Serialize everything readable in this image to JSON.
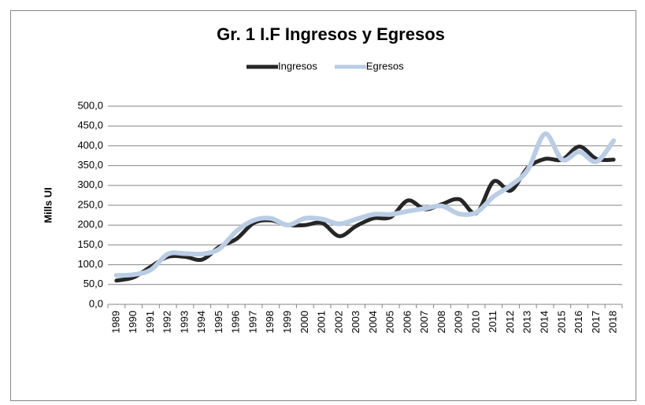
{
  "chart_data": {
    "type": "line",
    "title": "Gr. 1  I.F Ingresos y Egresos",
    "y_label": "Mills UI",
    "categories": [
      "1989",
      "1990",
      "1991",
      "1992",
      "1993",
      "1994",
      "1995",
      "1996",
      "1997",
      "1998",
      "1999",
      "2000",
      "2001",
      "2002",
      "2003",
      "2004",
      "2005",
      "2006",
      "2007",
      "2008",
      "2009",
      "2010",
      "2011",
      "2012",
      "2013",
      "2014",
      "2015",
      "2016",
      "2017",
      "2018"
    ],
    "series": [
      {
        "name": "Ingresos",
        "color": "#262626",
        "values": [
          60,
          68,
          95,
          120,
          120,
          113,
          145,
          165,
          205,
          212,
          200,
          200,
          205,
          172,
          198,
          217,
          220,
          262,
          240,
          253,
          265,
          230,
          310,
          287,
          345,
          367,
          365,
          398,
          367,
          365
        ]
      },
      {
        "name": "Egresos",
        "color": "#b9cde5",
        "values": [
          73,
          75,
          87,
          127,
          128,
          127,
          140,
          185,
          212,
          217,
          200,
          217,
          215,
          203,
          215,
          227,
          227,
          235,
          242,
          248,
          228,
          232,
          272,
          300,
          340,
          430,
          365,
          385,
          360,
          413
        ]
      }
    ],
    "ylim": [
      0,
      500
    ],
    "yticks": [
      {
        "value": 0,
        "label": "0,0"
      },
      {
        "value": 50,
        "label": "50,0"
      },
      {
        "value": 100,
        "label": "100,0"
      },
      {
        "value": 150,
        "label": "150,0"
      },
      {
        "value": 200,
        "label": "200,0"
      },
      {
        "value": 250,
        "label": "250,0"
      },
      {
        "value": 300,
        "label": "300,0"
      },
      {
        "value": 350,
        "label": "350,0"
      },
      {
        "value": 400,
        "label": "400,0"
      },
      {
        "value": 450,
        "label": "450,0"
      },
      {
        "value": 500,
        "label": "500,0"
      }
    ],
    "grid": true,
    "legend": "top"
  }
}
